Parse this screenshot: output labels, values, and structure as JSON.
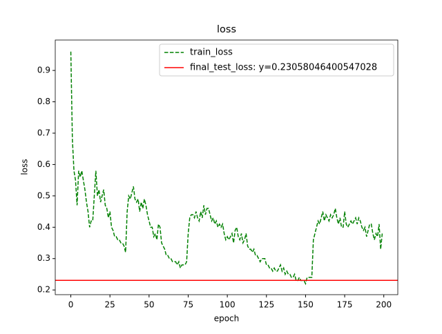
{
  "chart_data": {
    "type": "line",
    "title": "loss",
    "xlabel": "epoch",
    "ylabel": "loss",
    "x": [
      0,
      1,
      2,
      3,
      4,
      5,
      6,
      7,
      8,
      9,
      10,
      11,
      12,
      13,
      14,
      15,
      16,
      17,
      18,
      19,
      20,
      21,
      22,
      23,
      24,
      25,
      26,
      27,
      28,
      29,
      30,
      31,
      32,
      33,
      34,
      35,
      36,
      37,
      38,
      39,
      40,
      41,
      42,
      43,
      44,
      45,
      46,
      47,
      48,
      49,
      50,
      51,
      52,
      53,
      54,
      55,
      56,
      57,
      58,
      59,
      60,
      61,
      62,
      63,
      64,
      65,
      66,
      67,
      68,
      69,
      70,
      71,
      72,
      73,
      74,
      75,
      76,
      77,
      78,
      79,
      80,
      81,
      82,
      83,
      84,
      85,
      86,
      87,
      88,
      89,
      90,
      91,
      92,
      93,
      94,
      95,
      96,
      97,
      98,
      99,
      100,
      101,
      102,
      103,
      104,
      105,
      106,
      107,
      108,
      109,
      110,
      111,
      112,
      113,
      114,
      115,
      116,
      117,
      118,
      119,
      120,
      121,
      122,
      123,
      124,
      125,
      126,
      127,
      128,
      129,
      130,
      131,
      132,
      133,
      134,
      135,
      136,
      137,
      138,
      139,
      140,
      141,
      142,
      143,
      144,
      145,
      146,
      147,
      148,
      149,
      150,
      151,
      152,
      153,
      154,
      155,
      156,
      157,
      158,
      159,
      160,
      161,
      162,
      163,
      164,
      165,
      166,
      167,
      168,
      169,
      170,
      171,
      172,
      173,
      174,
      175,
      176,
      177,
      178,
      179,
      180,
      181,
      182,
      183,
      184,
      185,
      186,
      187,
      188,
      189,
      190,
      191,
      192,
      193,
      194,
      195,
      196,
      197,
      198,
      199
    ],
    "series": [
      {
        "name": "train_loss",
        "color": "#008000",
        "dashed": true,
        "values": [
          0.96,
          0.68,
          0.58,
          0.55,
          0.47,
          0.58,
          0.56,
          0.58,
          0.55,
          0.52,
          0.48,
          0.45,
          0.4,
          0.42,
          0.42,
          0.5,
          0.58,
          0.5,
          0.52,
          0.48,
          0.5,
          0.52,
          0.47,
          0.46,
          0.43,
          0.45,
          0.4,
          0.39,
          0.37,
          0.37,
          0.36,
          0.36,
          0.35,
          0.35,
          0.34,
          0.32,
          0.45,
          0.5,
          0.49,
          0.51,
          0.53,
          0.49,
          0.48,
          0.49,
          0.45,
          0.48,
          0.46,
          0.49,
          0.47,
          0.44,
          0.42,
          0.4,
          0.4,
          0.37,
          0.38,
          0.36,
          0.41,
          0.4,
          0.35,
          0.34,
          0.33,
          0.31,
          0.31,
          0.3,
          0.3,
          0.29,
          0.29,
          0.29,
          0.28,
          0.29,
          0.27,
          0.28,
          0.28,
          0.28,
          0.29,
          0.38,
          0.43,
          0.44,
          0.44,
          0.43,
          0.45,
          0.43,
          0.42,
          0.45,
          0.43,
          0.47,
          0.44,
          0.46,
          0.46,
          0.44,
          0.42,
          0.43,
          0.41,
          0.42,
          0.4,
          0.41,
          0.4,
          0.41,
          0.38,
          0.36,
          0.37,
          0.36,
          0.37,
          0.38,
          0.35,
          0.39,
          0.4,
          0.37,
          0.36,
          0.38,
          0.35,
          0.36,
          0.38,
          0.34,
          0.33,
          0.33,
          0.32,
          0.33,
          0.31,
          0.31,
          0.3,
          0.29,
          0.3,
          0.3,
          0.3,
          0.28,
          0.28,
          0.27,
          0.27,
          0.26,
          0.27,
          0.26,
          0.26,
          0.27,
          0.28,
          0.26,
          0.27,
          0.25,
          0.26,
          0.25,
          0.25,
          0.24,
          0.24,
          0.25,
          0.23,
          0.23,
          0.24,
          0.23,
          0.23,
          0.23,
          0.22,
          0.24,
          0.24,
          0.24,
          0.24,
          0.36,
          0.38,
          0.4,
          0.42,
          0.41,
          0.43,
          0.45,
          0.42,
          0.44,
          0.43,
          0.42,
          0.44,
          0.43,
          0.44,
          0.46,
          0.43,
          0.41,
          0.43,
          0.4,
          0.4,
          0.45,
          0.41,
          0.4,
          0.41,
          0.42,
          0.41,
          0.42,
          0.43,
          0.41,
          0.43,
          0.42,
          0.4,
          0.39,
          0.4,
          0.37,
          0.39,
          0.41,
          0.41,
          0.38,
          0.36,
          0.38,
          0.37,
          0.41,
          0.33,
          0.38
        ]
      },
      {
        "name": "final_test_loss: y=0.23058046400547028",
        "color": "#ff0000",
        "kind": "hline",
        "y": 0.23058046400547028
      }
    ],
    "xlim": [
      -9.95,
      208.95
    ],
    "ylim": [
      0.185,
      0.997
    ],
    "xticks": [
      0,
      25,
      50,
      75,
      100,
      125,
      150,
      175,
      200
    ],
    "yticks": [
      0.2,
      0.3,
      0.4,
      0.5,
      0.6,
      0.7,
      0.8,
      0.9
    ],
    "legend": "upper right"
  }
}
